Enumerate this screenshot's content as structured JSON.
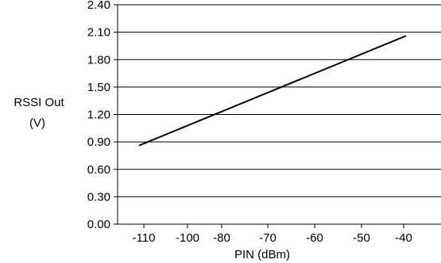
{
  "chart_data": {
    "type": "line",
    "title": "",
    "xlabel": "PIN (dBm)",
    "ylabel_lines": [
      "RSSI Out",
      "(V)"
    ],
    "x_tick_labels": [
      "-110",
      "-100",
      "-80",
      "-70",
      "-60",
      "-50",
      "-40"
    ],
    "y_tick_labels": [
      "2.40",
      "2.10",
      "1.80",
      "1.50",
      "1.20",
      "0.90",
      "0.60",
      "0.30",
      "0.00"
    ],
    "ylim": [
      0,
      2.4
    ],
    "grid": "horizontal",
    "series": [
      {
        "x": [
          -110,
          -40
        ],
        "y": [
          0.86,
          2.06
        ]
      }
    ],
    "colors": {
      "line": "#000000",
      "grid": "#000000",
      "background": "#ffffff"
    }
  }
}
